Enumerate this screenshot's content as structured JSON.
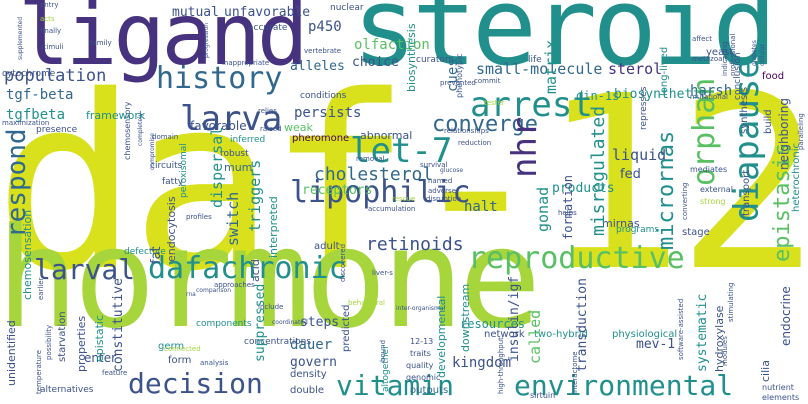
{
  "palette": {
    "yellow": "#d9e11d",
    "lime": "#a6d63c",
    "green": "#58c063",
    "teal": "#21908d",
    "blue": "#31688e",
    "indigo": "#3b528b",
    "purple": "#46327e",
    "dark": "#440154"
  },
  "words": {
    "daf12": "daf-12",
    "hormone": "hormone",
    "steroid": "steroid",
    "ligand": "ligand",
    "arrest": "arrest",
    "larva": "larva",
    "history": "history",
    "lipophilic": "lipophilic",
    "let7": "let-7",
    "dafachronic": "dafachronic",
    "reproductive": "reproductive",
    "decision": "decision",
    "vitamin": "vitamin",
    "environmental": "environmental",
    "larval": "larval",
    "respond": "respond",
    "nhr": "nhr",
    "diapause": "diapause",
    "orphan": "orphan",
    "micrornas": "micrornas",
    "epistasis": "epistasis",
    "converge": "converge",
    "cholesterol": "cholesterol",
    "retinoids": "retinoids",
    "population": "population",
    "tgfbeta_dash": "tgf-beta",
    "tgfbeta": "tgfbeta",
    "smallmolecule": "small-molecule",
    "sterol": "sterol",
    "p450": "p450",
    "olfaction": "olfaction",
    "mutual": "mutual",
    "unfavorable": "unfavorable",
    "accurate": "accurate",
    "nuclear": "nuclear",
    "alleles": "alleles",
    "choice": "choice",
    "harsh": "harsh",
    "matrix": "matrix",
    "cues": "cues",
    "persists": "persists",
    "favorable": "favorable",
    "framework": "framework",
    "biosynthetic": "biosynthetic",
    "din1s": "din-1s",
    "misregulated": "misregulated",
    "liquid": "liquid",
    "fed": "fed",
    "halt": "halt",
    "gonad": "gonad",
    "dispersal": "dispersal",
    "products": "products",
    "receptors": "receptors",
    "triggers": "triggers",
    "switch": "switch",
    "formation": "formation",
    "called": "called",
    "transduction": "transduction",
    "insulinigf": "insulin/igf",
    "mev1": "mev-1",
    "dauer": "dauer",
    "govern": "govern",
    "steps": "steps",
    "constitutive": "constitutive",
    "enter": "enter",
    "kingdom": "kingdom",
    "resources": "resources",
    "mirnas": "mirnas",
    "weak": "weak",
    "abnormal": "abnormal",
    "pheromone": "pheromone",
    "fat": "fat",
    "endocytosis": "endocytosis",
    "fatty": "fatty",
    "mum": "mum",
    "chemosensation": "chemosensation",
    "acid": "acid",
    "suppressed": "suppressed",
    "concentrations": "concentrations",
    "components": "components",
    "epistatic": "epistatic",
    "form": "form",
    "germ": "germ",
    "properties": "properties",
    "unidentified": "unidentified",
    "starvation": "starvation",
    "endocrine": "endocrine",
    "food": "food",
    "stage": "stage",
    "conclusion": "conclusion",
    "yeast": "yeast",
    "twohybrid": "two-hybrid",
    "network": "network",
    "physiological": "physiological",
    "systematic": "systematic",
    "hydroxylase": "hydroxylase",
    "cilia": "cilia",
    "developmental": "developmental",
    "downstream": "downstream",
    "predicted": "predicted",
    "density": "density",
    "double": "double",
    "outputs": "outputs",
    "altogether": "altogether",
    "interpreted": "interpreted",
    "robust": "robust",
    "circuits": "circuits",
    "presence": "presence",
    "alternatives": "alternatives",
    "cytochrome": "cytochrome",
    "neighboring": "neighboring",
    "heterochronic": "heterochronic",
    "synthesis": "synthesis",
    "build": "build",
    "transport": "transport",
    "life": "life",
    "longlived": "long-lived",
    "represses": "represses",
    "conditions": "conditions",
    "curators": "curators",
    "biosynthesis": "biosynthesis",
    "adult": "adult",
    "defective": "defective",
    "inferred": "inferred",
    "peroxisomal": "peroxisomal",
    "programs": "programs",
    "genomic": "genomic",
    "quality": "quality",
    "traits": "traits",
    "n1213": "12-13",
    "sirtuin": "sirtuin",
    "mutational": "mutational",
    "elements": "elements",
    "nutrient": "nutrient",
    "strong": "strong",
    "external": "external",
    "mediates": "mediates",
    "raised": "raised",
    "relies": "relies",
    "rescue": "rescue",
    "accumulation": "accumulation",
    "removal": "removal",
    "reduction": "reduction",
    "relationships": "relationships",
    "tester": "tester",
    "commit": "commit",
    "prevented": "prevented",
    "phenotypic": "phenotypic",
    "metazoan": "metazoan",
    "affect": "affect",
    "indicating": "indicating",
    "professional": "professional",
    "diabetes": "diabetes",
    "cellular": "cellular",
    "progression": "progression",
    "inappropriate": "inappropriate",
    "vertebrate": "vertebrate",
    "chemosensory": "chemosensory",
    "maximization": "maximization",
    "feature": "feature",
    "temperature": "temperature",
    "earlier": "earlier",
    "entry": "entry",
    "acts": "acts",
    "finally": "finally",
    "stimuli": "stimuli",
    "family": "family",
    "supplemented": "supplemented",
    "completely": "completely",
    "compromise": "compromise",
    "domain": "domain",
    "approaches": "approaches",
    "connected": "connected",
    "comparison": "comparison",
    "include": "include",
    "behavioral": "behavioral",
    "analysis": "analysis",
    "coordinated": "coordinated",
    "profiles": "profiles",
    "discovered": "discovered",
    "named": "named",
    "adverse": "adverse",
    "glucose": "glucose",
    "survival": "survival",
    "disruption": "disruption",
    "helps": "helps",
    "interorganismal": "inter-organismal",
    "interactome": "interactome",
    "highthroughput": "high-throughput",
    "softwareassisted": "software-assisted",
    "stimulating": "stimulating",
    "modules": "modules",
    "paralleling": "paralleling",
    "liver": "liver-s",
    "rna": "rna",
    "bound": "bound",
    "converting": "converting",
    "possibility": "possibility"
  }
}
